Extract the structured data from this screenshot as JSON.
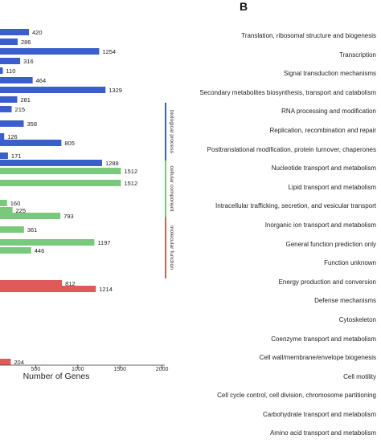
{
  "chart_data": {
    "type": "bar",
    "orientation": "horizontal",
    "xlabel": "Number of Genes",
    "xlim": [
      0,
      2000
    ],
    "xticks": [
      500,
      1000,
      1500,
      2000
    ],
    "series": [
      {
        "group": "biological process",
        "color": "#3a5fcd",
        "values": [
          420,
          286,
          1254,
          316,
          110,
          464,
          1329,
          281,
          215,
          358,
          126,
          805,
          171,
          1288
        ]
      },
      {
        "group": "cellular component",
        "color": "#79c97d",
        "values": [
          1512,
          1512,
          160,
          225,
          793,
          361,
          1197,
          446
        ]
      },
      {
        "group": "molecular function",
        "color": "#e05a5a",
        "values": [
          812,
          1214,
          204
        ]
      }
    ],
    "legend": [
      "biological process",
      "cellular component",
      "molecular function"
    ]
  },
  "panel_b": {
    "label": "B",
    "categories": [
      "Translation, ribosomal structure and biogenesis",
      "Transcription",
      "Signal transduction mechanisms",
      "Secondary metabolites biosynthesis, transport and catabolism",
      "RNA processing and modification",
      "Replication, recombination and repair",
      "Posttranslational modification, protein turnover, chaperones",
      "Nucleotide transport and metabolism",
      "Lipid transport and metabolism",
      "Intracellular trafficking, secretion, and vesicular transport",
      "Inorganic ion transport and metabolism",
      "General function prediction only",
      "Function unknown",
      "Energy production and conversion",
      "Defense mechanisms",
      "Cytoskeleton",
      "Coenzyme transport and metabolism",
      "Cell wall/membrane/envelope biogenesis",
      "Cell motility",
      "Cell cycle control, cell division, chromosome partitioning",
      "Carbohydrate transport and metabolism",
      "Amino acid transport and metabolism"
    ]
  }
}
